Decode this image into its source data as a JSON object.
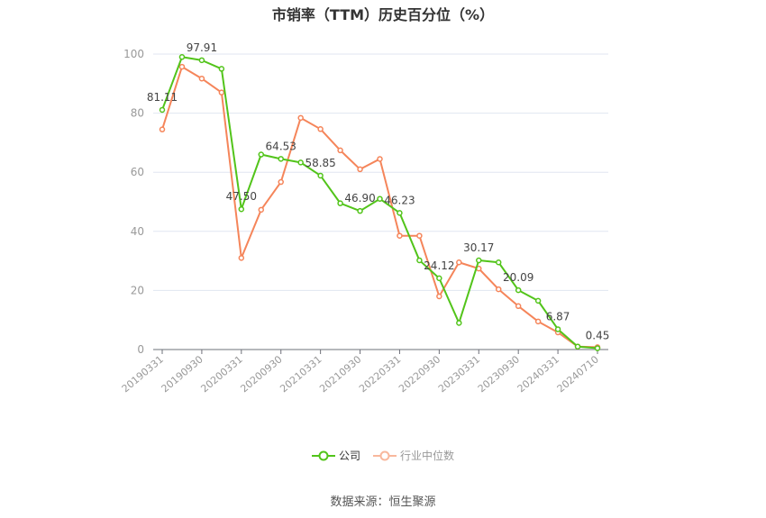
{
  "title": "市销率（TTM）历史百分位（%）",
  "source": "数据来源：恒生聚源",
  "colors": {
    "company": "#52c41a",
    "industry": "#f5855a",
    "grid": "#e0e6f1",
    "axis": "#6e7079",
    "label": "#999999"
  },
  "legend": {
    "company": "公司",
    "industry": "行业中位数"
  },
  "chart_data": {
    "type": "line",
    "title": "市销率（TTM）历史百分位（%）",
    "xlabel": "",
    "ylabel": "",
    "ylim": [
      0,
      100
    ],
    "yticks": [
      0,
      20,
      40,
      60,
      80,
      100
    ],
    "grid": true,
    "legend_position": "bottom",
    "x": [
      "20190331",
      "20190630",
      "20190930",
      "20191231",
      "20200331",
      "20200630",
      "20200930",
      "20201231",
      "20210331",
      "20210630",
      "20210930",
      "20211231",
      "20220331",
      "20220630",
      "20220930",
      "20221231",
      "20230331",
      "20230630",
      "20230930",
      "20231231",
      "20240331",
      "20240630",
      "20240710"
    ],
    "xtick_labels": [
      "20190331",
      "20190930",
      "20200331",
      "20200930",
      "20210331",
      "20210930",
      "20220331",
      "20220930",
      "20230331",
      "20230930",
      "20240331",
      "20240710"
    ],
    "series": [
      {
        "name": "公司",
        "color": "#52c41a",
        "values": [
          81.11,
          99.0,
          97.91,
          95.0,
          47.5,
          66.0,
          64.53,
          63.3,
          58.85,
          49.5,
          46.9,
          51.0,
          46.23,
          30.2,
          24.12,
          9.0,
          30.17,
          29.5,
          20.09,
          16.5,
          6.87,
          1.0,
          0.45
        ],
        "labeled_points": {
          "0": "81.11",
          "2": "97.91",
          "4": "47.50",
          "6": "64.53",
          "8": "58.85",
          "10": "46.90",
          "12": "46.23",
          "14": "24.12",
          "16": "30.17",
          "18": "20.09",
          "20": "6.87",
          "22": "0.45"
        }
      },
      {
        "name": "行业中位数",
        "color": "#f5855a",
        "values": [
          74.5,
          95.7,
          91.7,
          87.0,
          31.0,
          47.3,
          56.7,
          78.4,
          74.6,
          67.4,
          61.0,
          64.5,
          38.5,
          38.5,
          18.0,
          29.5,
          27.4,
          20.4,
          14.7,
          9.5,
          5.8,
          1.0,
          0.8
        ]
      }
    ]
  }
}
